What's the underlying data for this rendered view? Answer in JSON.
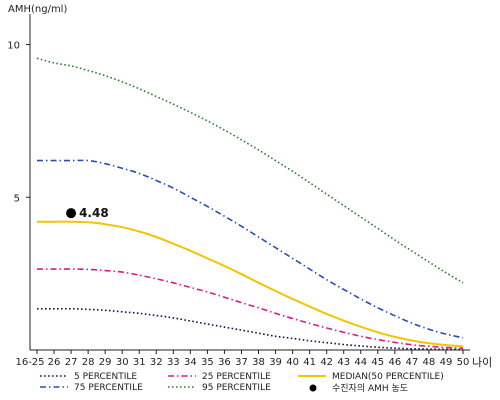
{
  "chart_data": {
    "type": "line",
    "ylabel": "AMH(ng/ml)",
    "xlabel": "나이",
    "ylim": [
      0,
      11
    ],
    "yticks": [
      5,
      10
    ],
    "categories": [
      "16-25",
      "26",
      "27",
      "28",
      "29",
      "30",
      "31",
      "32",
      "33",
      "34",
      "35",
      "36",
      "37",
      "38",
      "39",
      "40",
      "41",
      "42",
      "43",
      "44",
      "45",
      "46",
      "47",
      "48",
      "49",
      "50"
    ],
    "series": [
      {
        "name": "5 PERCENTILE",
        "color": "#0a1a4a",
        "dash": "dotted",
        "values": [
          1.35,
          1.35,
          1.35,
          1.33,
          1.3,
          1.25,
          1.2,
          1.13,
          1.05,
          0.95,
          0.85,
          0.75,
          0.65,
          0.55,
          0.45,
          0.38,
          0.3,
          0.24,
          0.18,
          0.13,
          0.09,
          0.06,
          0.04,
          0.03,
          0.02,
          0.02
        ]
      },
      {
        "name": "25 PERCENTILE",
        "color": "#d81b8c",
        "dash": "dashdot",
        "values": [
          2.65,
          2.65,
          2.65,
          2.64,
          2.6,
          2.55,
          2.45,
          2.33,
          2.2,
          2.05,
          1.9,
          1.73,
          1.55,
          1.38,
          1.2,
          1.03,
          0.87,
          0.72,
          0.58,
          0.45,
          0.34,
          0.25,
          0.17,
          0.12,
          0.08,
          0.06
        ]
      },
      {
        "name": "MEDIAN(50 PERCENTILE)",
        "color": "#f4c400",
        "dash": "solid",
        "values": [
          4.2,
          4.2,
          4.2,
          4.18,
          4.12,
          4.02,
          3.88,
          3.7,
          3.48,
          3.25,
          3.0,
          2.75,
          2.48,
          2.2,
          1.93,
          1.67,
          1.42,
          1.18,
          0.96,
          0.76,
          0.58,
          0.43,
          0.31,
          0.22,
          0.16,
          0.12
        ]
      },
      {
        "name": "75 PERCENTILE",
        "color": "#2a4eb0",
        "dash": "dashdot",
        "values": [
          6.2,
          6.2,
          6.2,
          6.2,
          6.1,
          5.95,
          5.78,
          5.55,
          5.3,
          5.0,
          4.7,
          4.38,
          4.05,
          3.7,
          3.35,
          3.0,
          2.65,
          2.3,
          1.98,
          1.67,
          1.38,
          1.12,
          0.88,
          0.68,
          0.52,
          0.4
        ]
      },
      {
        "name": "95 PERCENTILE",
        "color": "#2e7d32",
        "dash": "dotted",
        "values": [
          9.55,
          9.4,
          9.3,
          9.15,
          8.98,
          8.78,
          8.55,
          8.3,
          8.05,
          7.78,
          7.5,
          7.2,
          6.88,
          6.55,
          6.2,
          5.85,
          5.48,
          5.1,
          4.73,
          4.35,
          3.98,
          3.6,
          3.24,
          2.88,
          2.53,
          2.2
        ]
      }
    ],
    "annotations": [
      {
        "label": "4.48",
        "x": "27",
        "y": 4.48,
        "legend": "수진자의 AMH 농도"
      }
    ]
  }
}
